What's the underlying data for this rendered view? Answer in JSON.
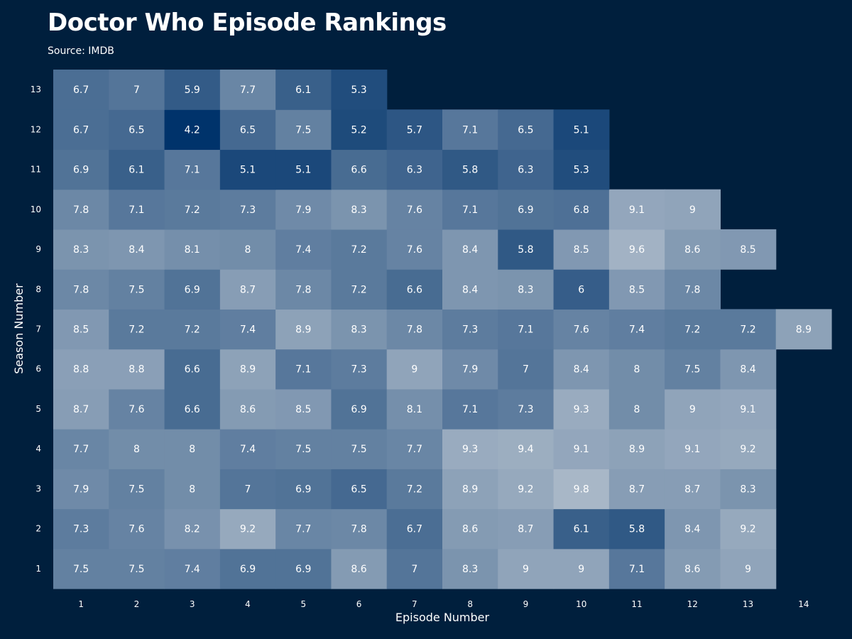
{
  "chart_data": {
    "type": "heatmap",
    "title": "Doctor Who Episode Rankings",
    "subtitle": "Source: IMDB",
    "xlabel": "Episode Number",
    "ylabel": "Season Number",
    "x": [
      1,
      2,
      3,
      4,
      5,
      6,
      7,
      8,
      9,
      10,
      11,
      12,
      13,
      14
    ],
    "y": [
      1,
      2,
      3,
      4,
      5,
      6,
      7,
      8,
      9,
      10,
      11,
      12,
      13
    ],
    "values": [
      [
        7.5,
        7.5,
        7.4,
        6.9,
        6.9,
        8.6,
        7,
        8.3,
        9,
        9,
        7.1,
        8.6,
        9,
        null
      ],
      [
        7.3,
        7.6,
        8.2,
        9.2,
        7.7,
        7.8,
        6.7,
        8.6,
        8.7,
        6.1,
        5.8,
        8.4,
        9.2,
        null
      ],
      [
        7.9,
        7.5,
        8,
        7,
        6.9,
        6.5,
        7.2,
        8.9,
        9.2,
        9.8,
        8.7,
        8.7,
        8.3,
        null
      ],
      [
        7.7,
        8,
        8,
        7.4,
        7.5,
        7.5,
        7.7,
        9.3,
        9.4,
        9.1,
        8.9,
        9.1,
        9.2,
        null
      ],
      [
        8.7,
        7.6,
        6.6,
        8.6,
        8.5,
        6.9,
        8.1,
        7.1,
        7.3,
        9.3,
        8,
        9,
        9.1,
        null
      ],
      [
        8.8,
        8.8,
        6.6,
        8.9,
        7.1,
        7.3,
        9,
        7.9,
        7,
        8.4,
        8,
        7.5,
        8.4,
        null
      ],
      [
        8.5,
        7.2,
        7.2,
        7.4,
        8.9,
        8.3,
        7.8,
        7.3,
        7.1,
        7.6,
        7.4,
        7.2,
        7.2,
        8.9
      ],
      [
        7.8,
        7.5,
        6.9,
        8.7,
        7.8,
        7.2,
        6.6,
        8.4,
        8.3,
        6,
        8.5,
        7.8,
        null,
        null
      ],
      [
        8.3,
        8.4,
        8.1,
        8,
        7.4,
        7.2,
        7.6,
        8.4,
        5.8,
        8.5,
        9.6,
        8.6,
        8.5,
        null
      ],
      [
        7.8,
        7.1,
        7.2,
        7.3,
        7.9,
        8.3,
        7.6,
        7.1,
        6.9,
        6.8,
        9.1,
        9,
        null,
        null
      ],
      [
        6.9,
        6.1,
        7.1,
        5.1,
        5.1,
        6.6,
        6.3,
        5.8,
        6.3,
        5.3,
        null,
        null,
        null,
        null
      ],
      [
        6.7,
        6.5,
        4.2,
        6.5,
        7.5,
        5.2,
        5.7,
        7.1,
        6.5,
        5.1,
        null,
        null,
        null,
        null
      ],
      [
        6.7,
        7,
        5.9,
        7.7,
        6.1,
        5.3,
        null,
        null,
        null,
        null,
        null,
        null,
        null,
        null
      ]
    ],
    "color_scale": {
      "min_color": "#00336b",
      "max_color": "#a8b7c7",
      "min_value": 4.2,
      "max_value": 9.8
    },
    "background_color": "#001f3d",
    "grid": false,
    "legend": false
  }
}
